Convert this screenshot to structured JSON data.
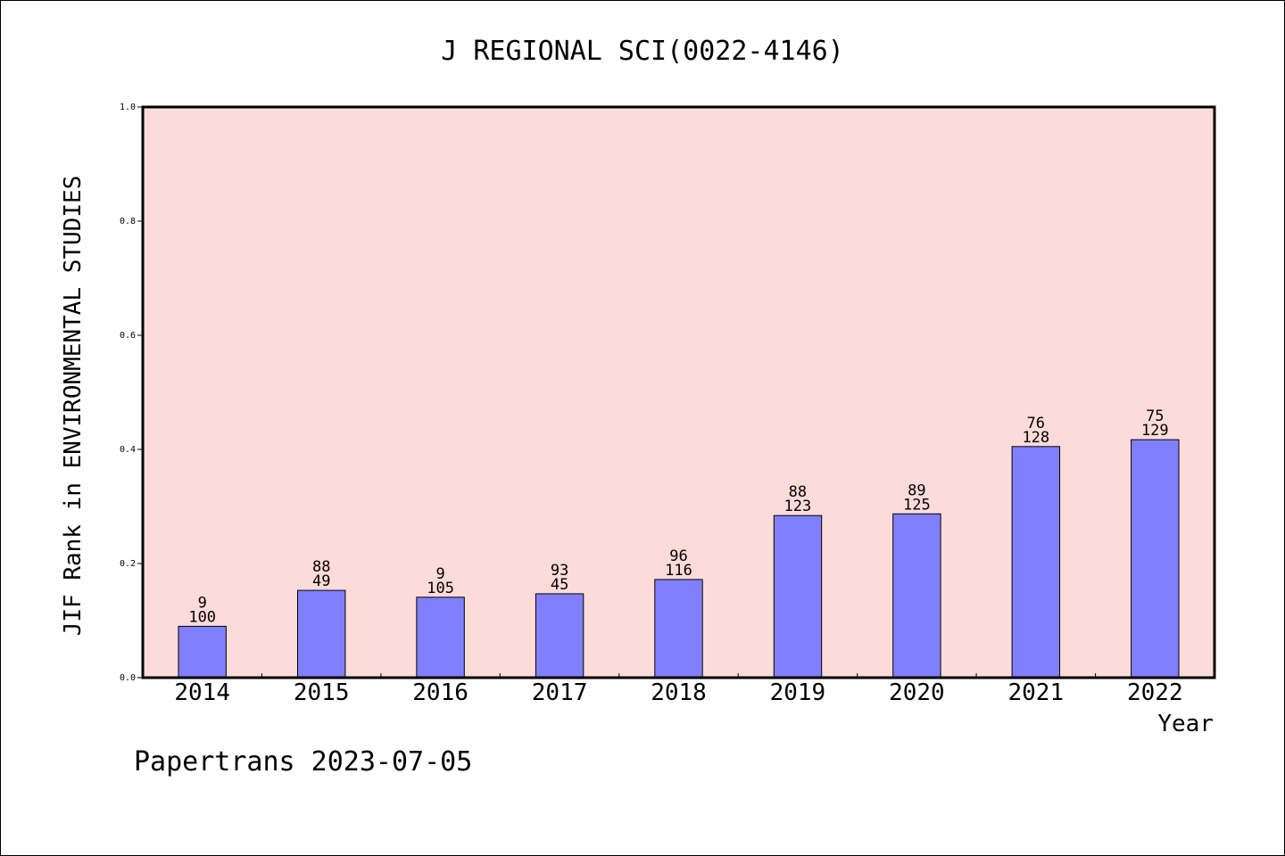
{
  "chart_data": {
    "type": "bar",
    "title": "J REGIONAL SCI(0022-4146)",
    "xlabel": "Year",
    "ylabel": "JIF Rank in ENVIRONMENTAL STUDIES",
    "categories": [
      "2014",
      "2015",
      "2016",
      "2017",
      "2018",
      "2019",
      "2020",
      "2021",
      "2022"
    ],
    "values": [
      0.09,
      0.153,
      0.141,
      0.147,
      0.172,
      0.284,
      0.287,
      0.405,
      0.417
    ],
    "labels_rank": [
      "9",
      "88",
      "9",
      "93",
      "96",
      "88",
      "89",
      "76",
      "75"
    ],
    "labels_total": [
      "100",
      "49",
      "105",
      "45",
      "116",
      "123",
      "125",
      "128",
      "129"
    ],
    "ylim": [
      0,
      1.0
    ],
    "yticks": [
      "0.0",
      "0.2",
      "0.4",
      "0.6",
      "0.8",
      "1.0"
    ],
    "grid": false,
    "colors": {
      "plot_background": "#FDDBD8",
      "bar_fill": "#8080FF",
      "bar_stroke": "#000000"
    }
  },
  "footer": "Papertrans 2023-07-05"
}
